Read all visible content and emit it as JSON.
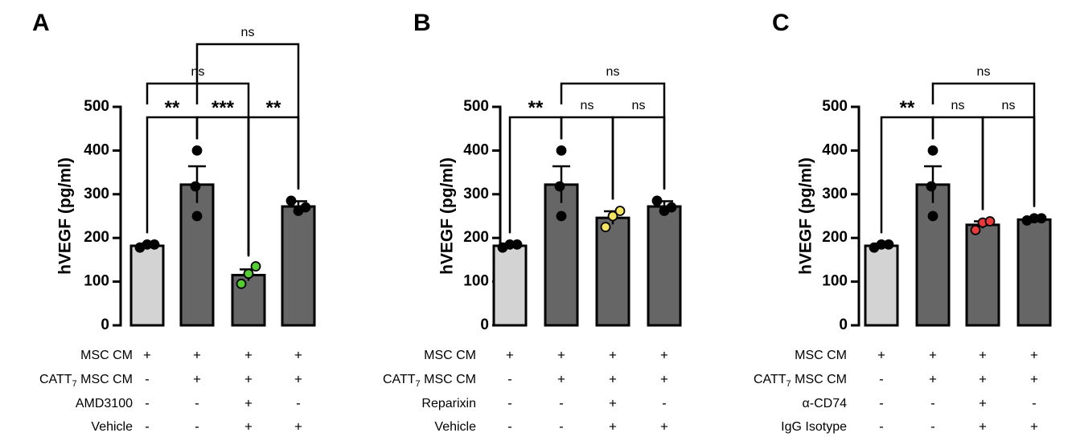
{
  "chart_data": [
    {
      "type": "bar",
      "panel_label": "A",
      "ylabel": "hVEGF (pg/ml)",
      "ylim": [
        0,
        500
      ],
      "yticks": [
        "0",
        "100",
        "200",
        "300",
        "400",
        "500"
      ],
      "values": [
        182,
        322,
        115,
        272
      ],
      "errors": [
        5,
        42,
        13,
        12
      ],
      "bar_colors": [
        "#d3d3d3",
        "#666666",
        "#666666",
        "#666666"
      ],
      "points": [
        [
          178,
          185,
          185
        ],
        [
          250,
          318,
          400
        ],
        [
          95,
          118,
          135
        ],
        [
          285,
          262,
          270
        ]
      ],
      "point_colors": [
        "#000000",
        "#000000",
        "#55cc33",
        "#000000"
      ],
      "rows": [
        {
          "label": "MSC CM",
          "signs": [
            "+",
            "+",
            "+",
            "+"
          ]
        },
        {
          "label": "CATT",
          "label_sub": "7",
          "label_rest": " MSC CM",
          "signs": [
            "-",
            "+",
            "+",
            "+"
          ]
        },
        {
          "label": "AMD3100",
          "signs": [
            "-",
            "-",
            "+",
            "-"
          ]
        },
        {
          "label": "Vehicle",
          "signs": [
            "-",
            "-",
            "+",
            "+"
          ]
        }
      ],
      "comparisons": [
        {
          "from": 0,
          "to": 1,
          "text": "**"
        },
        {
          "from": 1,
          "to": 2,
          "text": "***"
        },
        {
          "from": 2,
          "to": 3,
          "text": "**"
        },
        {
          "from": 0,
          "to": 2,
          "text": "ns"
        },
        {
          "from": 1,
          "to": 3,
          "text": "ns"
        }
      ]
    },
    {
      "type": "bar",
      "panel_label": "B",
      "ylabel": "hVEGF (pg/ml)",
      "ylim": [
        0,
        500
      ],
      "yticks": [
        "0",
        "100",
        "200",
        "300",
        "400",
        "500"
      ],
      "values": [
        182,
        322,
        246,
        272
      ],
      "errors": [
        5,
        42,
        15,
        12
      ],
      "bar_colors": [
        "#d3d3d3",
        "#666666",
        "#666666",
        "#666666"
      ],
      "points": [
        [
          178,
          185,
          185
        ],
        [
          250,
          318,
          400
        ],
        [
          225,
          250,
          262
        ],
        [
          285,
          262,
          270
        ]
      ],
      "point_colors": [
        "#000000",
        "#000000",
        "#f5e463",
        "#000000"
      ],
      "rows": [
        {
          "label": "MSC CM",
          "signs": [
            "+",
            "+",
            "+",
            "+"
          ]
        },
        {
          "label": "CATT",
          "label_sub": "7",
          "label_rest": " MSC CM",
          "signs": [
            "-",
            "+",
            "+",
            "+"
          ]
        },
        {
          "label": "Reparixin",
          "signs": [
            "-",
            "-",
            "+",
            "-"
          ]
        },
        {
          "label": "Vehicle",
          "signs": [
            "-",
            "-",
            "+",
            "+"
          ]
        }
      ],
      "comparisons": [
        {
          "from": 0,
          "to": 1,
          "text": "**"
        },
        {
          "from": 1,
          "to": 2,
          "text": "ns"
        },
        {
          "from": 2,
          "to": 3,
          "text": "ns"
        },
        {
          "from": 1,
          "to": 3,
          "text": "ns"
        }
      ]
    },
    {
      "type": "bar",
      "panel_label": "C",
      "ylabel": "hVEGF (pg/ml)",
      "ylim": [
        0,
        500
      ],
      "yticks": [
        "0",
        "100",
        "200",
        "300",
        "400",
        "500"
      ],
      "values": [
        182,
        322,
        230,
        242
      ],
      "errors": [
        5,
        42,
        8,
        4
      ],
      "bar_colors": [
        "#d3d3d3",
        "#666666",
        "#666666",
        "#666666"
      ],
      "points": [
        [
          178,
          185,
          185
        ],
        [
          250,
          318,
          400
        ],
        [
          218,
          235,
          238
        ],
        [
          240,
          245,
          245
        ]
      ],
      "point_colors": [
        "#000000",
        "#000000",
        "#e8393b",
        "#000000"
      ],
      "rows": [
        {
          "label": "MSC CM",
          "signs": [
            "+",
            "+",
            "+",
            "+"
          ]
        },
        {
          "label": "CATT",
          "label_sub": "7",
          "label_rest": " MSC CM",
          "signs": [
            "-",
            "+",
            "+",
            "+"
          ]
        },
        {
          "label": "α-CD74",
          "signs": [
            "-",
            "-",
            "+",
            "-"
          ]
        },
        {
          "label": "IgG Isotype",
          "signs": [
            "-",
            "-",
            "+",
            "+"
          ]
        }
      ],
      "comparisons": [
        {
          "from": 0,
          "to": 1,
          "text": "**"
        },
        {
          "from": 1,
          "to": 2,
          "text": "ns"
        },
        {
          "from": 2,
          "to": 3,
          "text": "ns"
        },
        {
          "from": 1,
          "to": 3,
          "text": "ns"
        }
      ]
    }
  ]
}
